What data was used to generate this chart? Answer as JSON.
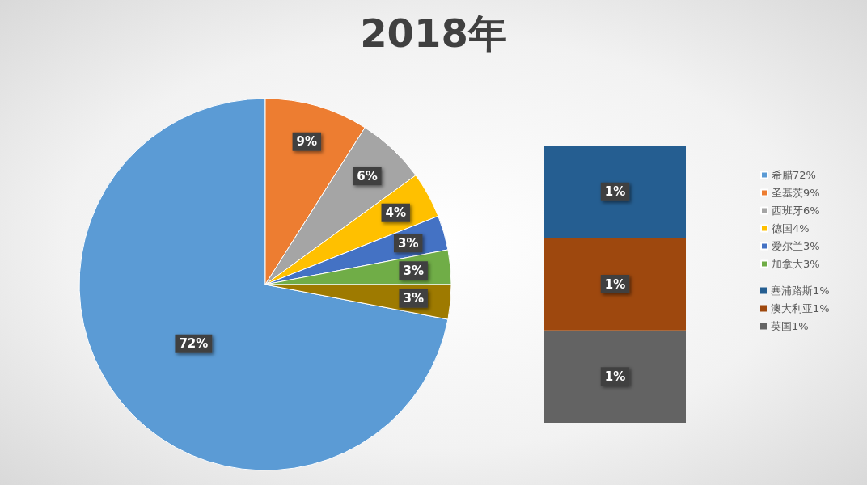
{
  "chart_data": [
    {
      "type": "pie",
      "title": "2018年",
      "categories": [
        "希腊72%",
        "圣基茨9%",
        "西班牙6%",
        "德国4%",
        "爱尔兰3%",
        "加拿大3%",
        null
      ],
      "values": [
        72,
        9,
        6,
        4,
        3,
        3,
        3
      ],
      "colors": [
        "#5b9bd5",
        "#ed7d31",
        "#a5a5a5",
        "#ffc000",
        "#4472c4",
        "#70ad47",
        "#9e7a00"
      ],
      "value_labels": [
        "72%",
        "9%",
        "6%",
        "4%",
        "3%",
        "3%",
        "3%"
      ],
      "legend": "right"
    },
    {
      "type": "bar",
      "stacked": true,
      "categories": [
        null
      ],
      "series": [
        {
          "name": "英国1%",
          "color": "#636363",
          "values": [
            1
          ],
          "value_labels": [
            "1%"
          ]
        },
        {
          "name": "澳大利亚1%",
          "color": "#9e480e",
          "values": [
            1
          ],
          "value_labels": [
            "1%"
          ]
        },
        {
          "name": "塞浦路斯1%",
          "color": "#255e91",
          "values": [
            1
          ],
          "value_labels": [
            "1%"
          ]
        }
      ],
      "legend": "right"
    }
  ]
}
